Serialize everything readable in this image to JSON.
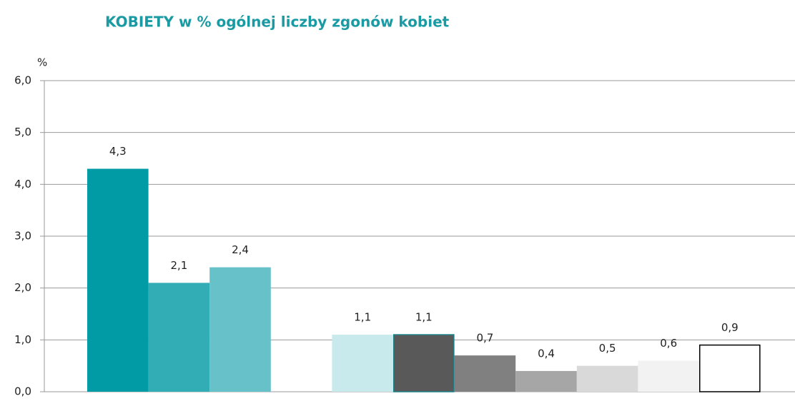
{
  "chart_data": {
    "type": "bar",
    "title": "KOBIETY w % ogólnej liczby zgonów kobiet",
    "ylabel": "%",
    "categories": [
      null,
      null,
      null,
      null,
      null,
      null,
      null,
      null,
      null,
      null,
      null
    ],
    "values": [
      4.3,
      2.1,
      2.4,
      null,
      1.1,
      1.1,
      0.7,
      0.4,
      0.5,
      0.6,
      0.9
    ],
    "value_labels": [
      "4,3",
      "2,1",
      "2,4",
      null,
      "1,1",
      "1,1",
      "0,7",
      "0,4",
      "0,5",
      "0,6",
      "0,9"
    ],
    "colors": [
      "#009ba4",
      "#33adb5",
      "#66c1c8",
      null,
      "#c8eaec",
      "#595959",
      "#808080",
      "#a6a6a6",
      "#d9d9d9",
      "#f2f2f2",
      "#ffffff"
    ],
    "edgecolors": [
      null,
      null,
      null,
      null,
      null,
      "#1a7f86",
      null,
      null,
      null,
      null,
      "#000000"
    ],
    "ylim": [
      0,
      6
    ],
    "yticks": [
      {
        "value": 0,
        "label": "0,0"
      },
      {
        "value": 1,
        "label": "1,0"
      },
      {
        "value": 2,
        "label": "2,0"
      },
      {
        "value": 3,
        "label": "3,0"
      },
      {
        "value": 4,
        "label": "4,0"
      },
      {
        "value": 5,
        "label": "5,0"
      },
      {
        "value": 6,
        "label": "6,0"
      }
    ],
    "grid": true
  }
}
